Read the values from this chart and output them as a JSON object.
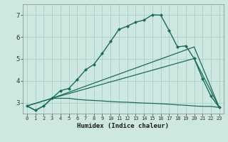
{
  "title": "",
  "xlabel": "Humidex (Indice chaleur)",
  "bg_color": "#cce8e0",
  "grid_color": "#aacfc8",
  "line_color": "#1a6b5a",
  "xlim": [
    -0.5,
    23.5
  ],
  "ylim": [
    2.5,
    7.5
  ],
  "xticks": [
    0,
    1,
    2,
    3,
    4,
    5,
    6,
    7,
    8,
    9,
    10,
    11,
    12,
    13,
    14,
    15,
    16,
    17,
    18,
    19,
    20,
    21,
    22,
    23
  ],
  "yticks": [
    3,
    4,
    5,
    6,
    7
  ],
  "line1_x": [
    0,
    1,
    2,
    3,
    4,
    5,
    6,
    7,
    8,
    9,
    10,
    11,
    12,
    13,
    14,
    15,
    16,
    17,
    18,
    19,
    20,
    21,
    22,
    23
  ],
  "line1_y": [
    2.85,
    2.65,
    2.85,
    3.2,
    3.55,
    3.65,
    4.05,
    4.5,
    4.75,
    5.25,
    5.8,
    6.35,
    6.5,
    6.68,
    6.78,
    7.02,
    7.0,
    6.3,
    5.55,
    5.6,
    5.02,
    4.1,
    3.3,
    2.78
  ],
  "line2_x": [
    0,
    3,
    20,
    23
  ],
  "line2_y": [
    2.85,
    3.2,
    5.55,
    2.78
  ],
  "line3_x": [
    0,
    3,
    20,
    23
  ],
  "line3_y": [
    2.85,
    3.2,
    5.02,
    2.78
  ],
  "line4_x": [
    0,
    1,
    2,
    3,
    4,
    5,
    6,
    7,
    8,
    9,
    10,
    11,
    12,
    13,
    14,
    15,
    16,
    17,
    18,
    19,
    20,
    21,
    22,
    23
  ],
  "line4_y": [
    2.85,
    2.65,
    2.85,
    3.2,
    3.2,
    3.2,
    3.15,
    3.12,
    3.1,
    3.08,
    3.05,
    3.03,
    3.02,
    3.0,
    2.98,
    2.97,
    2.95,
    2.93,
    2.9,
    2.88,
    2.85,
    2.83,
    2.83,
    2.78
  ]
}
